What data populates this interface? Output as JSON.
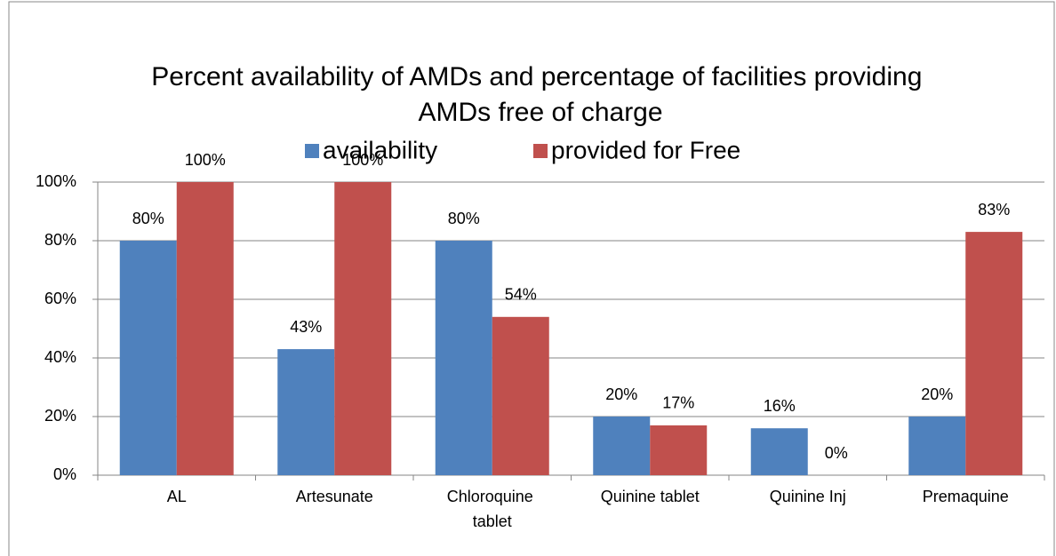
{
  "chart_data": {
    "type": "bar",
    "title": "Percent availability of AMDs and percentage of facilities providing AMDs free of charge",
    "categories": [
      "AL",
      "Artesunate",
      "Chloroquine tablet",
      "Quinine tablet",
      "Quinine Inj",
      "Premaquine"
    ],
    "series": [
      {
        "name": "availability",
        "color": "#4f81bd",
        "values": [
          80,
          43,
          80,
          20,
          16,
          20
        ],
        "value_labels": [
          "80%",
          "43%",
          "80%",
          "20%",
          "16%",
          "20%"
        ]
      },
      {
        "name": "provided for Free",
        "color": "#c0504d",
        "values": [
          100,
          100,
          54,
          17,
          0,
          83
        ],
        "value_labels": [
          "100%",
          "100%",
          "54%",
          "17%",
          "0%",
          "83%"
        ]
      }
    ],
    "ylim": [
      0,
      100
    ],
    "yticks": [
      {
        "value": 0,
        "label": "0%"
      },
      {
        "value": 20,
        "label": "20%"
      },
      {
        "value": 40,
        "label": "40%"
      },
      {
        "value": 60,
        "label": "60%"
      },
      {
        "value": 80,
        "label": "80%"
      },
      {
        "value": 100,
        "label": "100%"
      }
    ],
    "grid": true,
    "legend": "top"
  }
}
